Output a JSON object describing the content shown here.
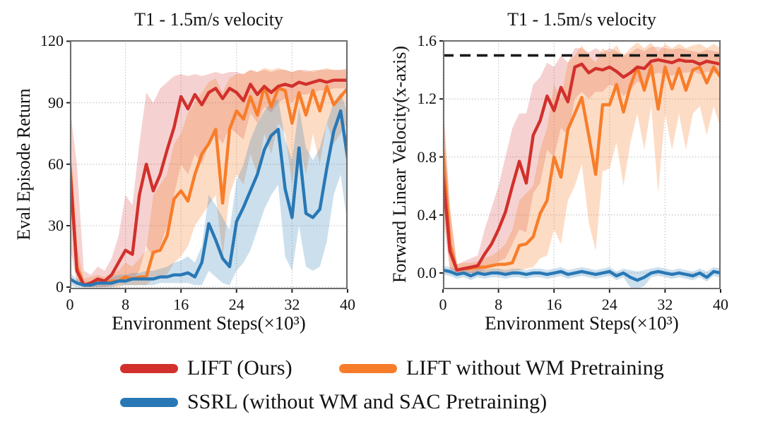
{
  "figure": {
    "background": "#ffffff"
  },
  "legend": {
    "entries": [
      {
        "label": "LIFT (Ours)",
        "color": "#d2302c"
      },
      {
        "label": "LIFT without WM Pretraining",
        "color": "#f87d2a"
      },
      {
        "label": "SSRL (without WM and SAC Pretraining)",
        "color": "#2878b5"
      }
    ]
  },
  "chart_data": [
    {
      "type": "line",
      "title": "T1 - 1.5m/s velocity",
      "xlabel": "Environment Steps(×10³)",
      "ylabel": "Eval Episode Return",
      "xlim": [
        0,
        40
      ],
      "ylim": [
        -1,
        120.5
      ],
      "xticks": [
        0,
        8,
        16,
        24,
        32,
        40
      ],
      "xtick_labels": [
        "0",
        "8",
        "16",
        "24",
        "32",
        "40"
      ],
      "yticks": [
        0,
        30,
        60,
        90,
        120
      ],
      "ytick_labels": [
        "0",
        "30",
        "60",
        "90",
        "120"
      ],
      "grid": "dotted",
      "legend_position": "below-figure",
      "x_start": 0,
      "x_step": 1,
      "draw_order": [
        1,
        0,
        2
      ],
      "series": [
        {
          "name": "LIFT (Ours)",
          "color": "#d2302c",
          "band_opacity": 0.22,
          "values": [
            58,
            8,
            1,
            2,
            4,
            3,
            6,
            12,
            18,
            16,
            45,
            60,
            47,
            55,
            67,
            78,
            93,
            87,
            94,
            89,
            95,
            97,
            92,
            97,
            95,
            91,
            99,
            94,
            98,
            95,
            98,
            99,
            98,
            100,
            99,
            100,
            101,
            100,
            101,
            101,
            101
          ],
          "band_upper": [
            88,
            60,
            8,
            6,
            10,
            8,
            14,
            25,
            45,
            40,
            70,
            95,
            90,
            97,
            100,
            103,
            104,
            103,
            104,
            103,
            104,
            105,
            104,
            105,
            105,
            104,
            106,
            105,
            106,
            105,
            106,
            106,
            105,
            106,
            106,
            105,
            106,
            106,
            106,
            106,
            106
          ],
          "band_lower": [
            20,
            2,
            0,
            0,
            0,
            0,
            1,
            2,
            4,
            3,
            8,
            20,
            15,
            20,
            30,
            45,
            60,
            55,
            65,
            60,
            70,
            75,
            70,
            78,
            75,
            72,
            85,
            80,
            88,
            85,
            90,
            92,
            90,
            94,
            94,
            95,
            96,
            96,
            97,
            97,
            97
          ]
        },
        {
          "name": "LIFT without WM Pretraining",
          "color": "#f87d2a",
          "band_opacity": 0.27,
          "values": [
            61,
            10,
            1,
            2,
            3,
            2,
            3,
            3,
            5,
            4,
            5,
            5,
            17,
            18,
            25,
            43,
            47,
            42,
            55,
            65,
            70,
            77,
            41,
            77,
            86,
            82,
            93,
            84,
            98,
            88,
            97,
            96,
            80,
            95,
            84,
            96,
            86,
            98,
            89,
            93,
            97
          ],
          "band_upper": [
            75,
            20,
            4,
            5,
            6,
            5,
            7,
            8,
            12,
            10,
            14,
            18,
            45,
            50,
            55,
            70,
            75,
            85,
            90,
            95,
            100,
            102,
            95,
            102,
            104,
            104,
            106,
            105,
            107,
            106,
            107,
            106,
            105,
            106,
            105,
            106,
            106,
            107,
            106,
            106,
            107
          ],
          "band_lower": [
            45,
            3,
            0,
            0,
            0,
            0,
            0,
            0,
            1,
            1,
            1,
            1,
            4,
            5,
            6,
            12,
            15,
            20,
            30,
            35,
            40,
            45,
            15,
            45,
            55,
            50,
            65,
            55,
            75,
            65,
            80,
            75,
            50,
            70,
            55,
            75,
            60,
            80,
            70,
            75,
            80
          ]
        },
        {
          "name": "SSRL (without WM and SAC Pretraining)",
          "color": "#2878b5",
          "band_opacity": 0.24,
          "values": [
            4,
            2,
            1,
            1,
            2,
            2,
            2,
            3,
            3,
            4,
            4,
            4,
            4,
            5,
            5,
            6,
            6,
            7,
            5,
            12,
            31,
            23,
            14,
            10,
            32,
            39,
            47,
            55,
            67,
            74,
            77,
            48,
            34,
            68,
            36,
            34,
            38,
            58,
            76,
            86,
            63
          ],
          "band_upper": [
            7,
            4,
            2,
            3,
            4,
            4,
            5,
            6,
            6,
            7,
            7,
            8,
            8,
            9,
            10,
            12,
            13,
            15,
            12,
            20,
            45,
            40,
            34,
            28,
            52,
            60,
            72,
            80,
            86,
            90,
            92,
            72,
            62,
            88,
            68,
            62,
            68,
            80,
            90,
            95,
            85
          ],
          "band_lower": [
            1,
            0,
            0,
            0,
            0,
            0,
            0,
            1,
            1,
            1,
            1,
            1,
            1,
            2,
            2,
            2,
            2,
            2,
            1,
            1,
            8,
            5,
            2,
            1,
            8,
            12,
            18,
            28,
            38,
            45,
            50,
            15,
            8,
            30,
            10,
            8,
            10,
            22,
            45,
            55,
            30
          ]
        }
      ]
    },
    {
      "type": "line",
      "title": "T1 - 1.5m/s velocity",
      "xlabel": "Environment Steps(×10³)",
      "ylabel": "Forward Linear Velocity(x-axis)",
      "xlim": [
        0,
        40
      ],
      "ylim": [
        -0.112,
        1.605
      ],
      "xticks": [
        0,
        8,
        16,
        24,
        32,
        40
      ],
      "xtick_labels": [
        "0",
        "8",
        "16",
        "24",
        "32",
        "40"
      ],
      "yticks": [
        0.0,
        0.4,
        0.8,
        1.2,
        1.6
      ],
      "ytick_labels": [
        "0.0",
        "0.4",
        "0.8",
        "1.2",
        "1.6"
      ],
      "grid": "dotted",
      "legend_position": "below-figure",
      "x_start": 0,
      "x_step": 1,
      "draw_order": [
        1,
        0,
        2
      ],
      "target_line": {
        "value": 1.5,
        "style": "dashed",
        "color": "#1a1a1a",
        "label": "target velocity 1.5 m/s"
      },
      "series": [
        {
          "name": "LIFT (Ours)",
          "color": "#d2302c",
          "band_opacity": 0.22,
          "values": [
            0.68,
            0.15,
            0.02,
            0.03,
            0.04,
            0.05,
            0.13,
            0.2,
            0.3,
            0.42,
            0.6,
            0.77,
            0.62,
            0.95,
            1.05,
            1.22,
            1.12,
            1.28,
            1.18,
            1.42,
            1.44,
            1.38,
            1.41,
            1.4,
            1.42,
            1.39,
            1.35,
            1.38,
            1.42,
            1.41,
            1.46,
            1.47,
            1.46,
            1.45,
            1.47,
            1.46,
            1.46,
            1.44,
            1.46,
            1.45,
            1.44
          ],
          "band_upper": [
            1.15,
            0.45,
            0.06,
            0.08,
            0.1,
            0.12,
            0.3,
            0.45,
            0.6,
            0.8,
            1.0,
            1.1,
            1.1,
            1.3,
            1.35,
            1.45,
            1.42,
            1.5,
            1.45,
            1.55,
            1.55,
            1.52,
            1.55,
            1.52,
            1.55,
            1.53,
            1.5,
            1.52,
            1.55,
            1.53,
            1.56,
            1.56,
            1.55,
            1.54,
            1.55,
            1.54,
            1.53,
            1.52,
            1.54,
            1.53,
            1.52
          ],
          "band_lower": [
            0.38,
            0.03,
            0.0,
            0.0,
            0.0,
            0.0,
            0.02,
            0.04,
            0.08,
            0.1,
            0.2,
            0.3,
            0.28,
            0.55,
            0.62,
            0.85,
            0.8,
            1.0,
            0.95,
            1.2,
            1.25,
            1.2,
            1.25,
            1.25,
            1.3,
            1.28,
            1.22,
            1.26,
            1.32,
            1.3,
            1.36,
            1.38,
            1.37,
            1.36,
            1.38,
            1.38,
            1.39,
            1.37,
            1.39,
            1.38,
            1.37
          ]
        },
        {
          "name": "LIFT without WM Pretraining",
          "color": "#f87d2a",
          "band_opacity": 0.27,
          "values": [
            0.85,
            0.2,
            0.02,
            0.03,
            0.03,
            0.04,
            0.04,
            0.05,
            0.06,
            0.06,
            0.07,
            0.19,
            0.2,
            0.25,
            0.41,
            0.5,
            0.8,
            0.66,
            0.99,
            1.1,
            1.21,
            0.95,
            0.68,
            1.16,
            1.16,
            1.3,
            1.11,
            1.29,
            1.42,
            1.26,
            1.43,
            1.13,
            1.42,
            1.27,
            1.41,
            1.26,
            1.4,
            1.42,
            1.31,
            1.42,
            1.35
          ],
          "band_upper": [
            1.2,
            0.45,
            0.06,
            0.07,
            0.07,
            0.08,
            0.1,
            0.12,
            0.15,
            0.2,
            0.3,
            0.5,
            0.55,
            0.6,
            0.85,
            1.0,
            1.3,
            1.2,
            1.45,
            1.5,
            1.57,
            1.5,
            1.45,
            1.55,
            1.52,
            1.57,
            1.5,
            1.55,
            1.59,
            1.55,
            1.59,
            1.52,
            1.58,
            1.55,
            1.58,
            1.55,
            1.57,
            1.58,
            1.55,
            1.58,
            1.55
          ],
          "band_lower": [
            0.5,
            0.03,
            0.0,
            0.0,
            0.0,
            0.0,
            0.0,
            0.0,
            0.0,
            0.0,
            0.0,
            0.02,
            0.03,
            0.04,
            0.1,
            0.12,
            0.3,
            0.2,
            0.5,
            0.6,
            0.75,
            0.35,
            0.15,
            0.7,
            0.72,
            0.9,
            0.6,
            0.9,
            1.1,
            0.85,
            1.15,
            0.55,
            1.1,
            0.85,
            1.1,
            0.85,
            1.1,
            1.15,
            0.95,
            1.15,
            1.0
          ]
        },
        {
          "name": "SSRL (without WM and SAC Pretraining)",
          "color": "#2878b5",
          "band_opacity": 0.24,
          "values": [
            0.02,
            0.01,
            -0.01,
            0.0,
            -0.02,
            0.0,
            -0.01,
            0.0,
            0.0,
            -0.01,
            0.0,
            0.0,
            -0.01,
            0.0,
            0.0,
            -0.01,
            0.0,
            0.01,
            -0.01,
            0.0,
            0.01,
            0.0,
            -0.01,
            0.0,
            0.01,
            -0.02,
            0.0,
            -0.03,
            -0.05,
            -0.03,
            0.0,
            0.01,
            0.0,
            -0.01,
            0.0,
            -0.01,
            -0.02,
            0.0,
            -0.03,
            0.01,
            0.0
          ],
          "band_upper": [
            0.05,
            0.04,
            0.02,
            0.03,
            0.01,
            0.03,
            0.02,
            0.03,
            0.03,
            0.02,
            0.03,
            0.03,
            0.02,
            0.03,
            0.03,
            0.02,
            0.03,
            0.04,
            0.02,
            0.03,
            0.04,
            0.03,
            0.02,
            0.03,
            0.04,
            0.01,
            0.03,
            0.02,
            0.01,
            0.02,
            0.03,
            0.04,
            0.03,
            0.02,
            0.03,
            0.02,
            0.01,
            0.03,
            0.01,
            0.04,
            0.03
          ],
          "band_lower": [
            -0.01,
            -0.02,
            -0.04,
            -0.03,
            -0.05,
            -0.03,
            -0.04,
            -0.03,
            -0.03,
            -0.04,
            -0.03,
            -0.03,
            -0.04,
            -0.03,
            -0.03,
            -0.04,
            -0.03,
            -0.02,
            -0.04,
            -0.03,
            -0.02,
            -0.03,
            -0.04,
            -0.03,
            -0.02,
            -0.05,
            -0.03,
            -0.1,
            -0.11,
            -0.09,
            -0.03,
            -0.02,
            -0.03,
            -0.04,
            -0.03,
            -0.04,
            -0.05,
            -0.03,
            -0.06,
            -0.02,
            -0.03
          ]
        }
      ]
    }
  ],
  "style": {
    "spine_color": "#6e6e6e",
    "grid_color": "#c5c5c5",
    "tick_color": "#222222",
    "line_width": 4.4
  }
}
